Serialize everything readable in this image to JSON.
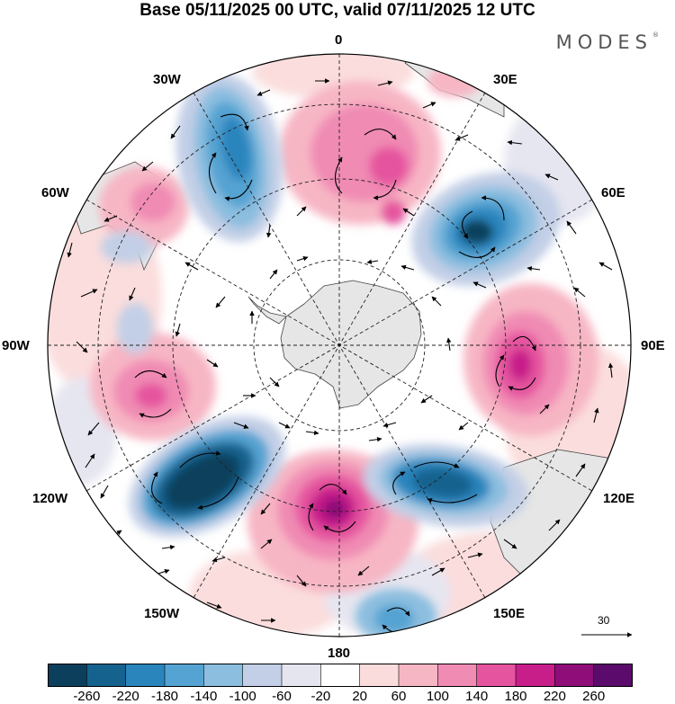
{
  "title": "Base 05/11/2025 00 UTC, valid 07/11/2025 12 UTC",
  "brand": "MODES",
  "brand_mark": "®",
  "longitude_labels": {
    "lon0": "0",
    "lon30e": "30E",
    "lon60e": "60E",
    "lon90e": "90E",
    "lon120e": "120E",
    "lon150e": "150E",
    "lon180": "180",
    "lon150w": "150W",
    "lon120w": "120W",
    "lon90w": "90W",
    "lon60w": "60W",
    "lon30w": "30W"
  },
  "reference_vector": {
    "label": "30"
  },
  "colorbar": {
    "colors": [
      "#0c3f5b",
      "#15628f",
      "#2a85bd",
      "#55a3d2",
      "#8cbedf",
      "#c2cfe6",
      "#e5e5f0",
      "#ffffff",
      "#fbdcdc",
      "#f7b6c4",
      "#f08bb4",
      "#e5559f",
      "#c71e8a",
      "#8f0d79",
      "#5a0b6b"
    ],
    "labels": [
      "-260",
      "-220",
      "-180",
      "-140",
      "-100",
      "-60",
      "-20",
      "20",
      "60",
      "100",
      "140",
      "180",
      "220",
      "260"
    ]
  }
}
